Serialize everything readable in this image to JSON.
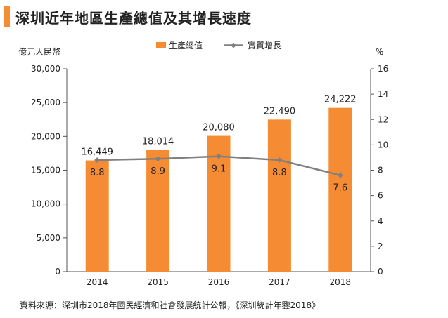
{
  "title": "深圳近年地區生產總值及其增長速度",
  "source": "資料來源：深圳市2018年國民經濟和社會發展統計公報，《深圳統計年鑒2018》",
  "colors": {
    "bar": "#f58b32",
    "line": "#808080",
    "accent": "#f58b32"
  },
  "chart_data": {
    "type": "bar",
    "categories": [
      "2014",
      "2015",
      "2016",
      "2017",
      "2018"
    ],
    "series": [
      {
        "name": "生產總值",
        "type": "bar",
        "axis": "left",
        "values": [
          16449,
          18014,
          20080,
          22490,
          24222
        ],
        "labels": [
          "16,449",
          "18,014",
          "20,080",
          "22,490",
          "24,222"
        ]
      },
      {
        "name": "實質增長",
        "type": "line",
        "axis": "right",
        "values": [
          8.8,
          8.9,
          9.1,
          8.8,
          7.6
        ],
        "labels": [
          "8.8",
          "8.9",
          "9.1",
          "8.8",
          "7.6"
        ]
      }
    ],
    "ylabel": "億元人民幣",
    "y2label": "%",
    "ylim": [
      0,
      30000
    ],
    "y2lim": [
      0,
      16
    ],
    "yticks": [
      "0",
      "5,000",
      "10,000",
      "15,000",
      "20,000",
      "25,000",
      "30,000"
    ],
    "y2ticks": [
      "0",
      "2",
      "4",
      "6",
      "8",
      "10",
      "12",
      "14",
      "16"
    ],
    "legend_position": "top",
    "grid": false
  }
}
